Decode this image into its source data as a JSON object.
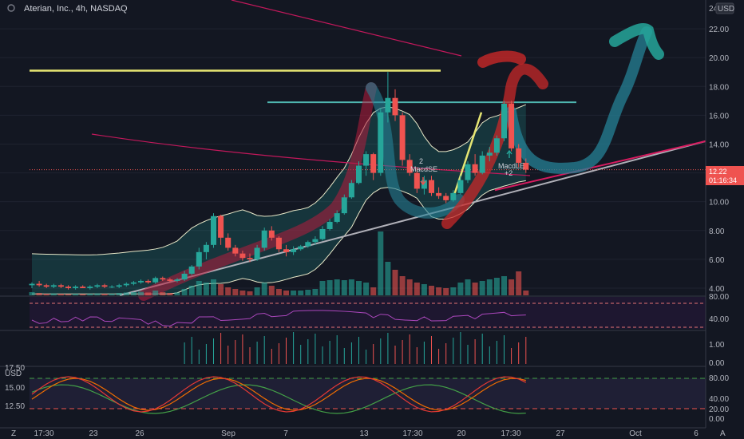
{
  "header": {
    "title": "Aterian, Inc., 4h, NASDAQ",
    "currency_partial": "24",
    "currency": "USD"
  },
  "colors": {
    "background": "#131722",
    "up": "#26a69a",
    "down": "#ef5350",
    "wma": "#b71c3c",
    "price_line": "#ef5350",
    "yellow": "#e6e673",
    "teal_line": "#4fb7b1"
  },
  "price_badge": {
    "value": "12.22",
    "countdown": "01:16:34"
  },
  "annotations": {
    "macd_se_count": "2",
    "macd_se": "MacdSE",
    "macd_le": "MacdLE",
    "macd_le_count": "+2"
  },
  "chart_data": [
    {
      "type": "candlestick",
      "pane": "price",
      "ylim": [
        3.5,
        24
      ],
      "y_ticks": [
        "4.00",
        "6.00",
        "8.00",
        "10.00",
        "12.00",
        "14.00",
        "16.00",
        "18.00",
        "20.00",
        "22.00"
      ],
      "candles": [
        {
          "o": 4.2,
          "h": 4.4,
          "l": 4.0,
          "c": 4.3
        },
        {
          "o": 4.3,
          "h": 4.5,
          "l": 4.1,
          "c": 4.2
        },
        {
          "o": 4.2,
          "h": 4.3,
          "l": 4.0,
          "c": 4.1
        },
        {
          "o": 4.1,
          "h": 4.3,
          "l": 4.0,
          "c": 4.2
        },
        {
          "o": 4.2,
          "h": 4.3,
          "l": 4.0,
          "c": 4.1
        },
        {
          "o": 4.1,
          "h": 4.2,
          "l": 3.9,
          "c": 4.0
        },
        {
          "o": 4.0,
          "h": 4.2,
          "l": 3.9,
          "c": 4.1
        },
        {
          "o": 4.1,
          "h": 4.2,
          "l": 4.0,
          "c": 4.0
        },
        {
          "o": 4.0,
          "h": 4.2,
          "l": 3.9,
          "c": 4.1
        },
        {
          "o": 4.1,
          "h": 4.3,
          "l": 4.0,
          "c": 4.2
        },
        {
          "o": 4.2,
          "h": 4.3,
          "l": 4.0,
          "c": 4.1
        },
        {
          "o": 4.1,
          "h": 4.2,
          "l": 4.0,
          "c": 4.1
        },
        {
          "o": 4.1,
          "h": 4.3,
          "l": 4.0,
          "c": 4.2
        },
        {
          "o": 4.2,
          "h": 4.4,
          "l": 4.1,
          "c": 4.3
        },
        {
          "o": 4.3,
          "h": 4.5,
          "l": 4.2,
          "c": 4.4
        },
        {
          "o": 4.4,
          "h": 4.6,
          "l": 4.3,
          "c": 4.5
        },
        {
          "o": 4.5,
          "h": 4.6,
          "l": 4.3,
          "c": 4.4
        },
        {
          "o": 4.4,
          "h": 4.8,
          "l": 4.3,
          "c": 4.7
        },
        {
          "o": 4.7,
          "h": 4.8,
          "l": 4.5,
          "c": 4.6
        },
        {
          "o": 4.6,
          "h": 4.7,
          "l": 4.4,
          "c": 4.5
        },
        {
          "o": 4.5,
          "h": 4.7,
          "l": 4.4,
          "c": 4.6
        },
        {
          "o": 4.6,
          "h": 5.2,
          "l": 4.5,
          "c": 5.0
        },
        {
          "o": 5.0,
          "h": 5.6,
          "l": 4.9,
          "c": 5.5
        },
        {
          "o": 5.5,
          "h": 6.8,
          "l": 5.3,
          "c": 6.5
        },
        {
          "o": 6.5,
          "h": 7.2,
          "l": 6.0,
          "c": 7.0
        },
        {
          "o": 7.0,
          "h": 9.2,
          "l": 6.8,
          "c": 9.0
        },
        {
          "o": 9.0,
          "h": 9.1,
          "l": 7.0,
          "c": 7.5
        },
        {
          "o": 7.5,
          "h": 7.8,
          "l": 6.6,
          "c": 6.8
        },
        {
          "o": 6.8,
          "h": 7.0,
          "l": 6.2,
          "c": 6.4
        },
        {
          "o": 6.4,
          "h": 6.6,
          "l": 5.9,
          "c": 6.1
        },
        {
          "o": 6.1,
          "h": 6.4,
          "l": 5.8,
          "c": 6.0
        },
        {
          "o": 6.0,
          "h": 7.0,
          "l": 5.9,
          "c": 6.8
        },
        {
          "o": 6.8,
          "h": 8.2,
          "l": 6.6,
          "c": 8.0
        },
        {
          "o": 8.0,
          "h": 8.3,
          "l": 7.3,
          "c": 7.5
        },
        {
          "o": 7.5,
          "h": 7.6,
          "l": 6.5,
          "c": 6.7
        },
        {
          "o": 6.7,
          "h": 7.0,
          "l": 6.2,
          "c": 6.5
        },
        {
          "o": 6.5,
          "h": 6.9,
          "l": 6.3,
          "c": 6.7
        },
        {
          "o": 6.7,
          "h": 7.0,
          "l": 6.6,
          "c": 6.9
        },
        {
          "o": 6.9,
          "h": 7.3,
          "l": 6.8,
          "c": 7.2
        },
        {
          "o": 7.2,
          "h": 7.6,
          "l": 7.0,
          "c": 7.4
        },
        {
          "o": 7.4,
          "h": 8.3,
          "l": 7.3,
          "c": 8.1
        },
        {
          "o": 8.1,
          "h": 8.8,
          "l": 8.0,
          "c": 8.6
        },
        {
          "o": 8.6,
          "h": 9.4,
          "l": 8.5,
          "c": 9.2
        },
        {
          "o": 9.2,
          "h": 10.5,
          "l": 9.1,
          "c": 10.3
        },
        {
          "o": 10.3,
          "h": 11.5,
          "l": 10.2,
          "c": 11.3
        },
        {
          "o": 11.3,
          "h": 12.8,
          "l": 11.2,
          "c": 12.5
        },
        {
          "o": 12.5,
          "h": 13.5,
          "l": 11.8,
          "c": 13.3
        },
        {
          "o": 13.3,
          "h": 13.4,
          "l": 11.5,
          "c": 12.0
        },
        {
          "o": 12.0,
          "h": 16.5,
          "l": 11.8,
          "c": 16.2
        },
        {
          "o": 16.2,
          "h": 19.0,
          "l": 15.5,
          "c": 17.2
        },
        {
          "o": 17.2,
          "h": 17.8,
          "l": 15.6,
          "c": 16.0
        },
        {
          "o": 16.0,
          "h": 16.2,
          "l": 12.5,
          "c": 12.9
        },
        {
          "o": 12.9,
          "h": 13.3,
          "l": 11.8,
          "c": 12.0
        },
        {
          "o": 12.0,
          "h": 12.4,
          "l": 10.6,
          "c": 10.9
        },
        {
          "o": 10.9,
          "h": 11.8,
          "l": 10.5,
          "c": 11.5
        },
        {
          "o": 11.5,
          "h": 11.8,
          "l": 10.4,
          "c": 10.6
        },
        {
          "o": 10.6,
          "h": 11.0,
          "l": 10.2,
          "c": 10.4
        },
        {
          "o": 10.4,
          "h": 10.6,
          "l": 9.9,
          "c": 10.1
        },
        {
          "o": 10.1,
          "h": 10.8,
          "l": 10.0,
          "c": 10.6
        },
        {
          "o": 10.6,
          "h": 11.8,
          "l": 10.5,
          "c": 11.5
        },
        {
          "o": 11.5,
          "h": 12.8,
          "l": 11.3,
          "c": 12.6
        },
        {
          "o": 12.6,
          "h": 13.3,
          "l": 11.8,
          "c": 12.0
        },
        {
          "o": 12.0,
          "h": 13.5,
          "l": 11.9,
          "c": 13.2
        },
        {
          "o": 13.2,
          "h": 13.8,
          "l": 12.8,
          "c": 13.4
        },
        {
          "o": 13.4,
          "h": 14.6,
          "l": 13.2,
          "c": 14.4
        },
        {
          "o": 14.4,
          "h": 17.0,
          "l": 14.2,
          "c": 16.8
        },
        {
          "o": 16.8,
          "h": 17.0,
          "l": 13.5,
          "c": 13.7
        },
        {
          "o": 13.7,
          "h": 14.0,
          "l": 12.4,
          "c": 12.7
        },
        {
          "o": 12.7,
          "h": 13.0,
          "l": 12.0,
          "c": 12.22
        }
      ],
      "volume": [
        0.2,
        0.15,
        0.1,
        0.12,
        0.1,
        0.08,
        0.1,
        0.08,
        0.1,
        0.12,
        0.1,
        0.1,
        0.15,
        0.18,
        0.2,
        0.22,
        0.18,
        0.3,
        0.2,
        0.15,
        0.18,
        0.4,
        0.6,
        0.9,
        0.8,
        1.0,
        0.7,
        0.5,
        0.4,
        0.3,
        0.25,
        0.5,
        0.8,
        0.6,
        0.4,
        0.3,
        0.3,
        0.3,
        0.35,
        0.4,
        0.9,
        0.95,
        1.0,
        0.95,
        1.0,
        0.9,
        0.8,
        0.5,
        4.0,
        2.1,
        1.6,
        1.2,
        1.0,
        0.8,
        0.7,
        0.6,
        0.5,
        0.45,
        0.5,
        0.8,
        1.0,
        0.8,
        0.9,
        1.0,
        1.1,
        1.2,
        1.0,
        1.5,
        0.3
      ]
    },
    {
      "type": "line",
      "pane": "rsi",
      "y_ticks": [
        "80.00",
        "40.00"
      ]
    },
    {
      "type": "bar",
      "pane": "macd",
      "y_ticks": [
        "1.00",
        "0.00"
      ]
    },
    {
      "type": "line",
      "pane": "stochastic",
      "y_ticks": [
        "80.00",
        "40.00",
        "20.00",
        "0.00"
      ],
      "left_ticks": [
        "USD",
        "17.50",
        "15.00",
        "12.50"
      ]
    }
  ],
  "x_axis": {
    "labels": [
      "17:30",
      "23",
      "26",
      "Sep",
      "7",
      "13",
      "17:30",
      "20",
      "17:30",
      "27",
      "Oct",
      "6"
    ],
    "corner_left": "Z",
    "corner_right": "A"
  }
}
